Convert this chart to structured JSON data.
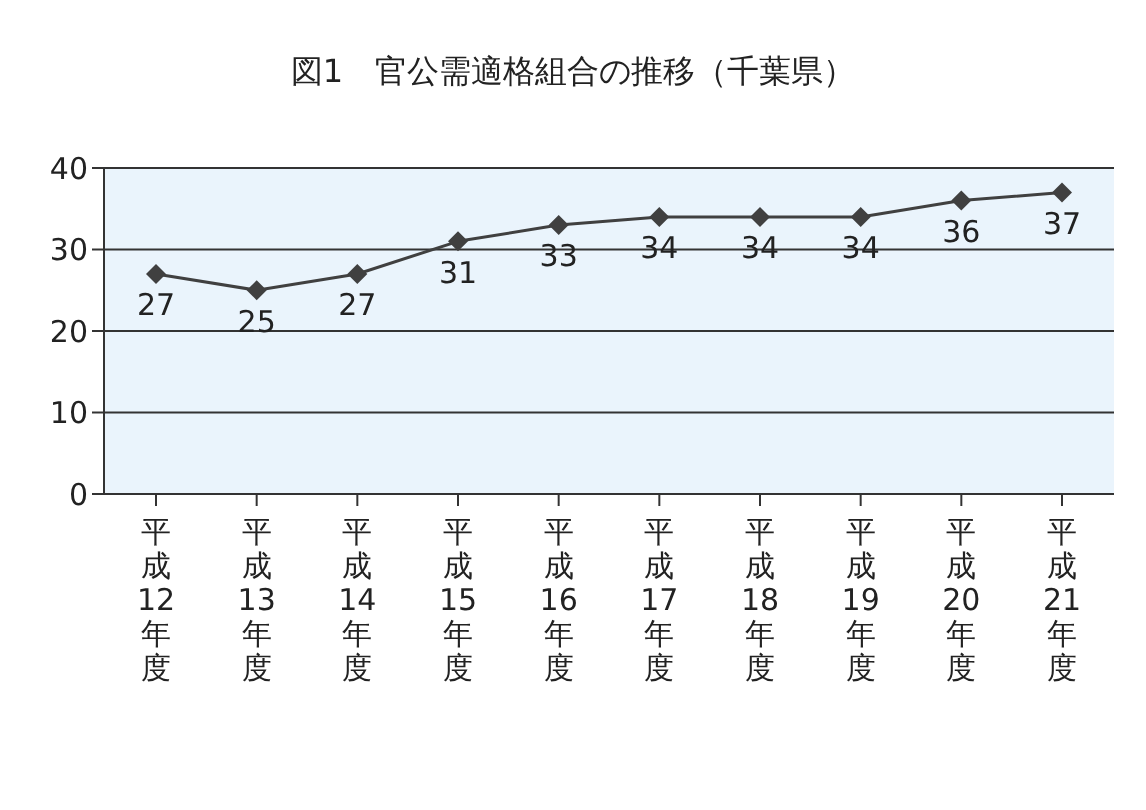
{
  "chart_data": {
    "type": "line",
    "title": "図1　官公需適格組合の推移（千葉県）",
    "categories": [
      "平成12年度",
      "平成13年度",
      "平成14年度",
      "平成15年度",
      "平成16年度",
      "平成17年度",
      "平成18年度",
      "平成19年度",
      "平成20年度",
      "平成21年度"
    ],
    "series": [
      {
        "color": "#404040",
        "values": [
          27,
          25,
          27,
          31,
          33,
          34,
          34,
          34,
          36,
          37
        ]
      }
    ],
    "ylim": [
      0,
      40
    ],
    "yticks": [
      0,
      10,
      20,
      30,
      40
    ],
    "grid": "y",
    "marker": "diamond",
    "line_style": "solid",
    "data_labels": true,
    "legend": false
  }
}
